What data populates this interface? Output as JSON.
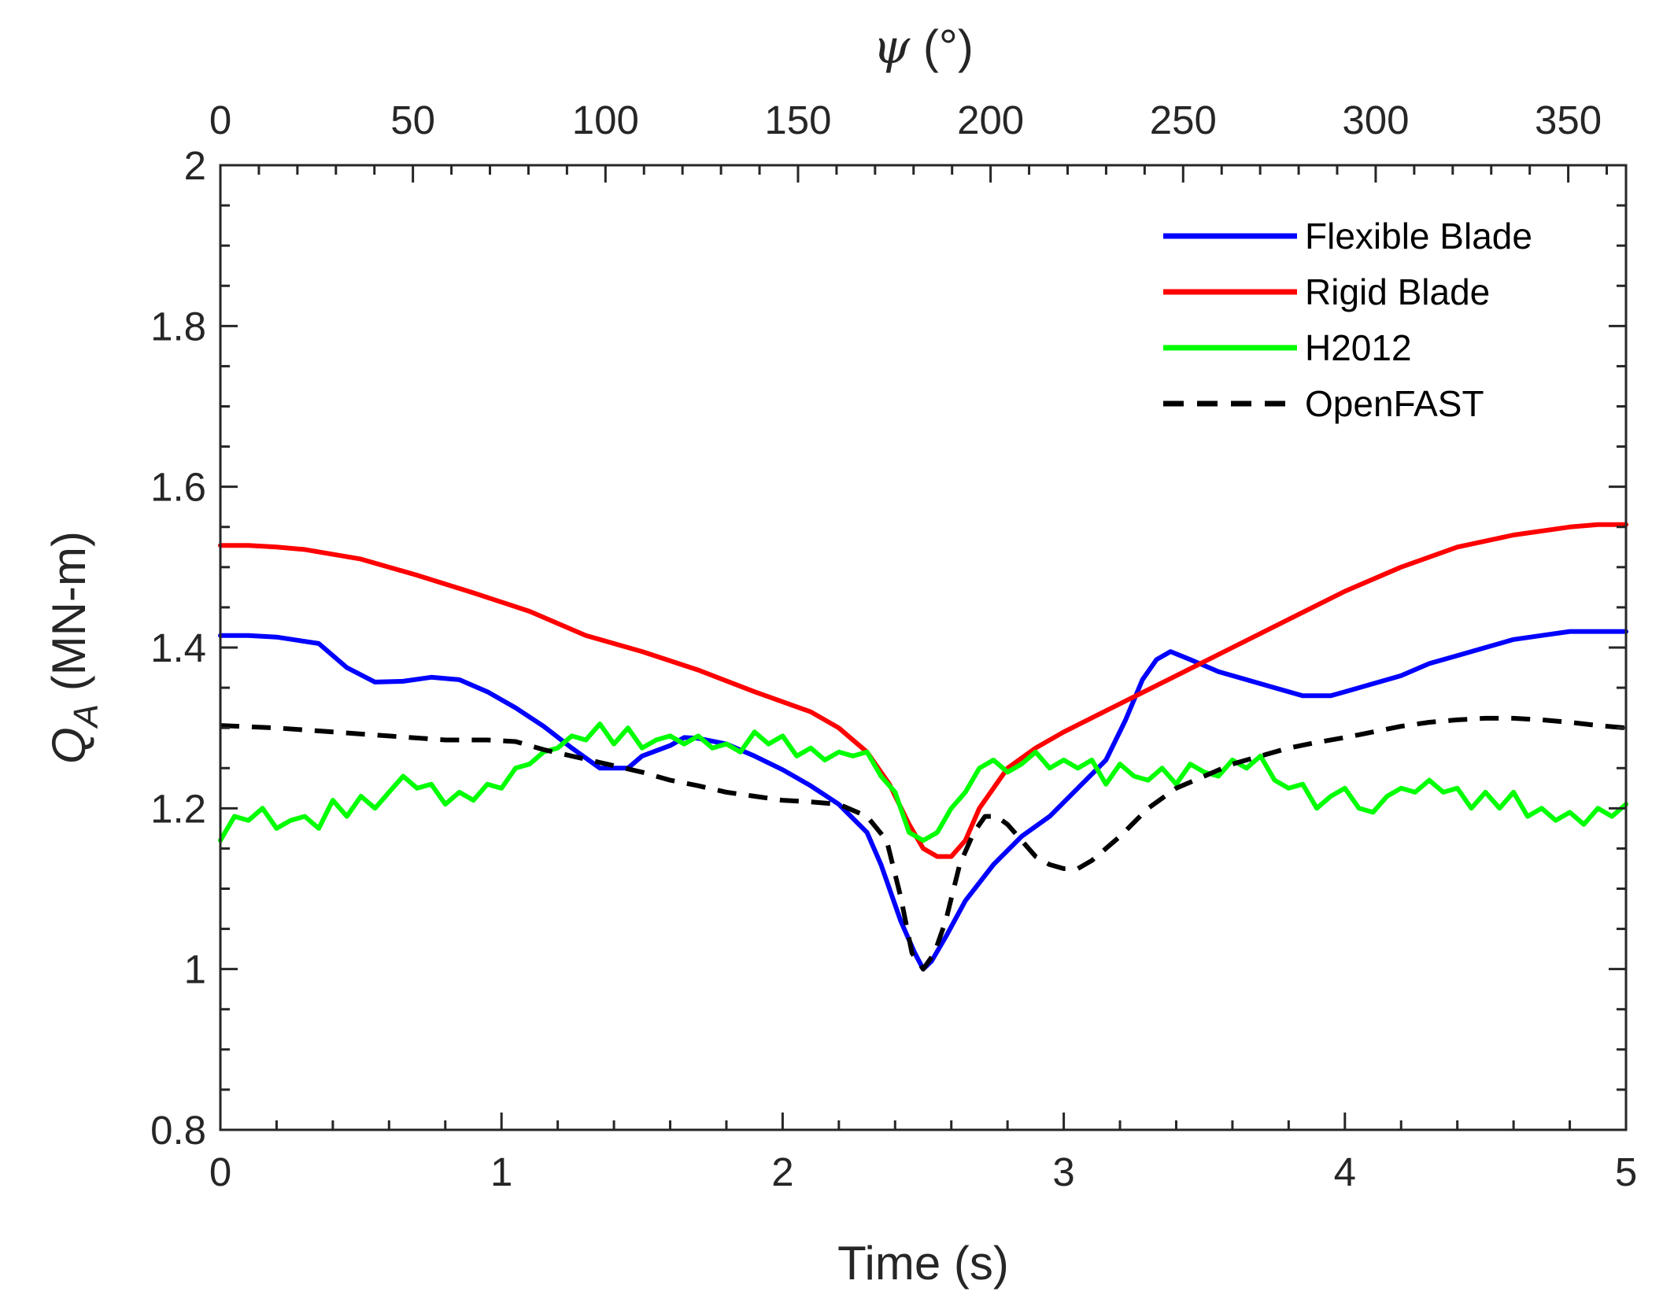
{
  "chart_data": {
    "type": "line",
    "title": "",
    "xlabel": "Time (s)",
    "ylabel": "Q_A (MN-m)",
    "ylabel_main": "Q",
    "ylabel_sub": "A",
    "ylabel_units": " (MN-m)",
    "xlim": [
      0,
      5
    ],
    "ylim": [
      0.8,
      2
    ],
    "top_axis": {
      "label_symbol": "ψ",
      "label_units": " (°)",
      "lim": [
        0,
        365
      ],
      "ticks": [
        0,
        50,
        100,
        150,
        200,
        250,
        300,
        350
      ]
    },
    "x_ticks": [
      0,
      1,
      2,
      3,
      4,
      5
    ],
    "y_ticks": [
      0.8,
      1,
      1.2,
      1.4,
      1.6,
      1.8,
      2
    ],
    "x_tick_labels": [
      "0",
      "1",
      "2",
      "3",
      "4",
      "5"
    ],
    "y_tick_labels": [
      "0.8",
      "1",
      "1.2",
      "1.4",
      "1.6",
      "1.8",
      "2"
    ],
    "top_tick_labels": [
      "0",
      "50",
      "100",
      "150",
      "200",
      "250",
      "300",
      "350"
    ],
    "grid": false,
    "legend_position": "top-right",
    "series": [
      {
        "name": "Flexible Blade",
        "color": "#0000ff",
        "style": "solid",
        "x": [
          0,
          0.1,
          0.2,
          0.35,
          0.45,
          0.55,
          0.65,
          0.75,
          0.85,
          0.95,
          1.05,
          1.15,
          1.25,
          1.35,
          1.45,
          1.5,
          1.6,
          1.65,
          1.7,
          1.8,
          1.9,
          2.0,
          2.1,
          2.2,
          2.3,
          2.35,
          2.42,
          2.47,
          2.5,
          2.53,
          2.58,
          2.65,
          2.75,
          2.85,
          2.95,
          3.05,
          3.15,
          3.22,
          3.28,
          3.33,
          3.38,
          3.45,
          3.55,
          3.65,
          3.75,
          3.85,
          3.95,
          4.0,
          4.1,
          4.2,
          4.3,
          4.4,
          4.5,
          4.6,
          4.7,
          4.8,
          4.9,
          5.0
        ],
        "y": [
          1.415,
          1.415,
          1.413,
          1.405,
          1.375,
          1.357,
          1.358,
          1.363,
          1.36,
          1.345,
          1.325,
          1.302,
          1.275,
          1.25,
          1.25,
          1.265,
          1.278,
          1.288,
          1.287,
          1.28,
          1.265,
          1.248,
          1.228,
          1.205,
          1.17,
          1.13,
          1.06,
          1.02,
          1.0,
          1.01,
          1.04,
          1.085,
          1.13,
          1.165,
          1.19,
          1.225,
          1.26,
          1.31,
          1.36,
          1.385,
          1.395,
          1.385,
          1.37,
          1.36,
          1.35,
          1.34,
          1.34,
          1.345,
          1.355,
          1.365,
          1.38,
          1.39,
          1.4,
          1.41,
          1.415,
          1.42,
          1.42,
          1.42
        ]
      },
      {
        "name": "Rigid Blade",
        "color": "#ff0000",
        "style": "solid",
        "x": [
          0,
          0.1,
          0.2,
          0.3,
          0.5,
          0.7,
          0.9,
          1.1,
          1.3,
          1.5,
          1.7,
          1.9,
          2.1,
          2.2,
          2.3,
          2.38,
          2.45,
          2.5,
          2.55,
          2.6,
          2.65,
          2.7,
          2.8,
          2.9,
          3.0,
          3.2,
          3.4,
          3.6,
          3.8,
          4.0,
          4.2,
          4.4,
          4.6,
          4.8,
          4.9,
          5.0
        ],
        "y": [
          1.527,
          1.527,
          1.525,
          1.522,
          1.51,
          1.49,
          1.468,
          1.445,
          1.415,
          1.395,
          1.372,
          1.345,
          1.32,
          1.3,
          1.27,
          1.23,
          1.18,
          1.15,
          1.14,
          1.14,
          1.16,
          1.2,
          1.25,
          1.275,
          1.295,
          1.33,
          1.365,
          1.4,
          1.435,
          1.47,
          1.5,
          1.525,
          1.54,
          1.55,
          1.553,
          1.553
        ]
      },
      {
        "name": "H2012",
        "color": "#00ff00",
        "style": "solid",
        "x": [
          0,
          0.05,
          0.1,
          0.15,
          0.2,
          0.25,
          0.3,
          0.35,
          0.4,
          0.45,
          0.5,
          0.55,
          0.6,
          0.65,
          0.7,
          0.75,
          0.8,
          0.85,
          0.9,
          0.95,
          1.0,
          1.05,
          1.1,
          1.15,
          1.2,
          1.25,
          1.3,
          1.35,
          1.4,
          1.45,
          1.5,
          1.55,
          1.6,
          1.65,
          1.7,
          1.75,
          1.8,
          1.85,
          1.9,
          1.95,
          2.0,
          2.05,
          2.1,
          2.15,
          2.2,
          2.25,
          2.3,
          2.35,
          2.4,
          2.45,
          2.5,
          2.55,
          2.6,
          2.65,
          2.7,
          2.75,
          2.8,
          2.85,
          2.9,
          2.95,
          3.0,
          3.05,
          3.1,
          3.15,
          3.2,
          3.25,
          3.3,
          3.35,
          3.4,
          3.45,
          3.5,
          3.55,
          3.6,
          3.65,
          3.7,
          3.75,
          3.8,
          3.85,
          3.9,
          3.95,
          4.0,
          4.05,
          4.1,
          4.15,
          4.2,
          4.25,
          4.3,
          4.35,
          4.4,
          4.45,
          4.5,
          4.55,
          4.6,
          4.65,
          4.7,
          4.75,
          4.8,
          4.85,
          4.9,
          4.95,
          5.0
        ],
        "y": [
          1.16,
          1.19,
          1.185,
          1.2,
          1.175,
          1.185,
          1.19,
          1.175,
          1.21,
          1.19,
          1.215,
          1.2,
          1.22,
          1.24,
          1.225,
          1.23,
          1.205,
          1.22,
          1.21,
          1.23,
          1.225,
          1.25,
          1.255,
          1.27,
          1.275,
          1.29,
          1.285,
          1.305,
          1.28,
          1.3,
          1.275,
          1.285,
          1.29,
          1.28,
          1.29,
          1.275,
          1.28,
          1.27,
          1.295,
          1.28,
          1.29,
          1.265,
          1.275,
          1.26,
          1.27,
          1.265,
          1.27,
          1.24,
          1.22,
          1.17,
          1.16,
          1.17,
          1.2,
          1.22,
          1.25,
          1.26,
          1.245,
          1.255,
          1.27,
          1.25,
          1.26,
          1.25,
          1.26,
          1.23,
          1.255,
          1.24,
          1.235,
          1.25,
          1.23,
          1.255,
          1.245,
          1.24,
          1.26,
          1.25,
          1.265,
          1.235,
          1.225,
          1.23,
          1.2,
          1.215,
          1.225,
          1.2,
          1.195,
          1.215,
          1.225,
          1.22,
          1.235,
          1.22,
          1.225,
          1.2,
          1.22,
          1.2,
          1.22,
          1.19,
          1.2,
          1.185,
          1.195,
          1.18,
          1.2,
          1.19,
          1.205
        ]
      },
      {
        "name": "OpenFAST",
        "color": "#000000",
        "style": "dashed",
        "x": [
          0,
          0.2,
          0.4,
          0.6,
          0.8,
          0.95,
          1.05,
          1.15,
          1.25,
          1.4,
          1.5,
          1.6,
          1.7,
          1.8,
          1.9,
          2.0,
          2.1,
          2.2,
          2.3,
          2.37,
          2.42,
          2.46,
          2.5,
          2.54,
          2.58,
          2.63,
          2.68,
          2.72,
          2.76,
          2.8,
          2.85,
          2.9,
          2.95,
          3.0,
          3.05,
          3.1,
          3.15,
          3.2,
          3.3,
          3.4,
          3.5,
          3.6,
          3.7,
          3.8,
          3.9,
          4.0,
          4.1,
          4.2,
          4.3,
          4.4,
          4.5,
          4.6,
          4.7,
          4.8,
          4.9,
          5.0
        ],
        "y": [
          1.303,
          1.3,
          1.295,
          1.29,
          1.285,
          1.285,
          1.283,
          1.273,
          1.265,
          1.253,
          1.245,
          1.235,
          1.228,
          1.22,
          1.215,
          1.21,
          1.208,
          1.205,
          1.19,
          1.16,
          1.09,
          1.02,
          1.0,
          1.02,
          1.06,
          1.13,
          1.17,
          1.19,
          1.19,
          1.18,
          1.16,
          1.14,
          1.13,
          1.125,
          1.125,
          1.135,
          1.15,
          1.165,
          1.2,
          1.225,
          1.24,
          1.255,
          1.265,
          1.275,
          1.282,
          1.288,
          1.295,
          1.302,
          1.307,
          1.31,
          1.312,
          1.312,
          1.31,
          1.307,
          1.303,
          1.3
        ]
      }
    ]
  }
}
